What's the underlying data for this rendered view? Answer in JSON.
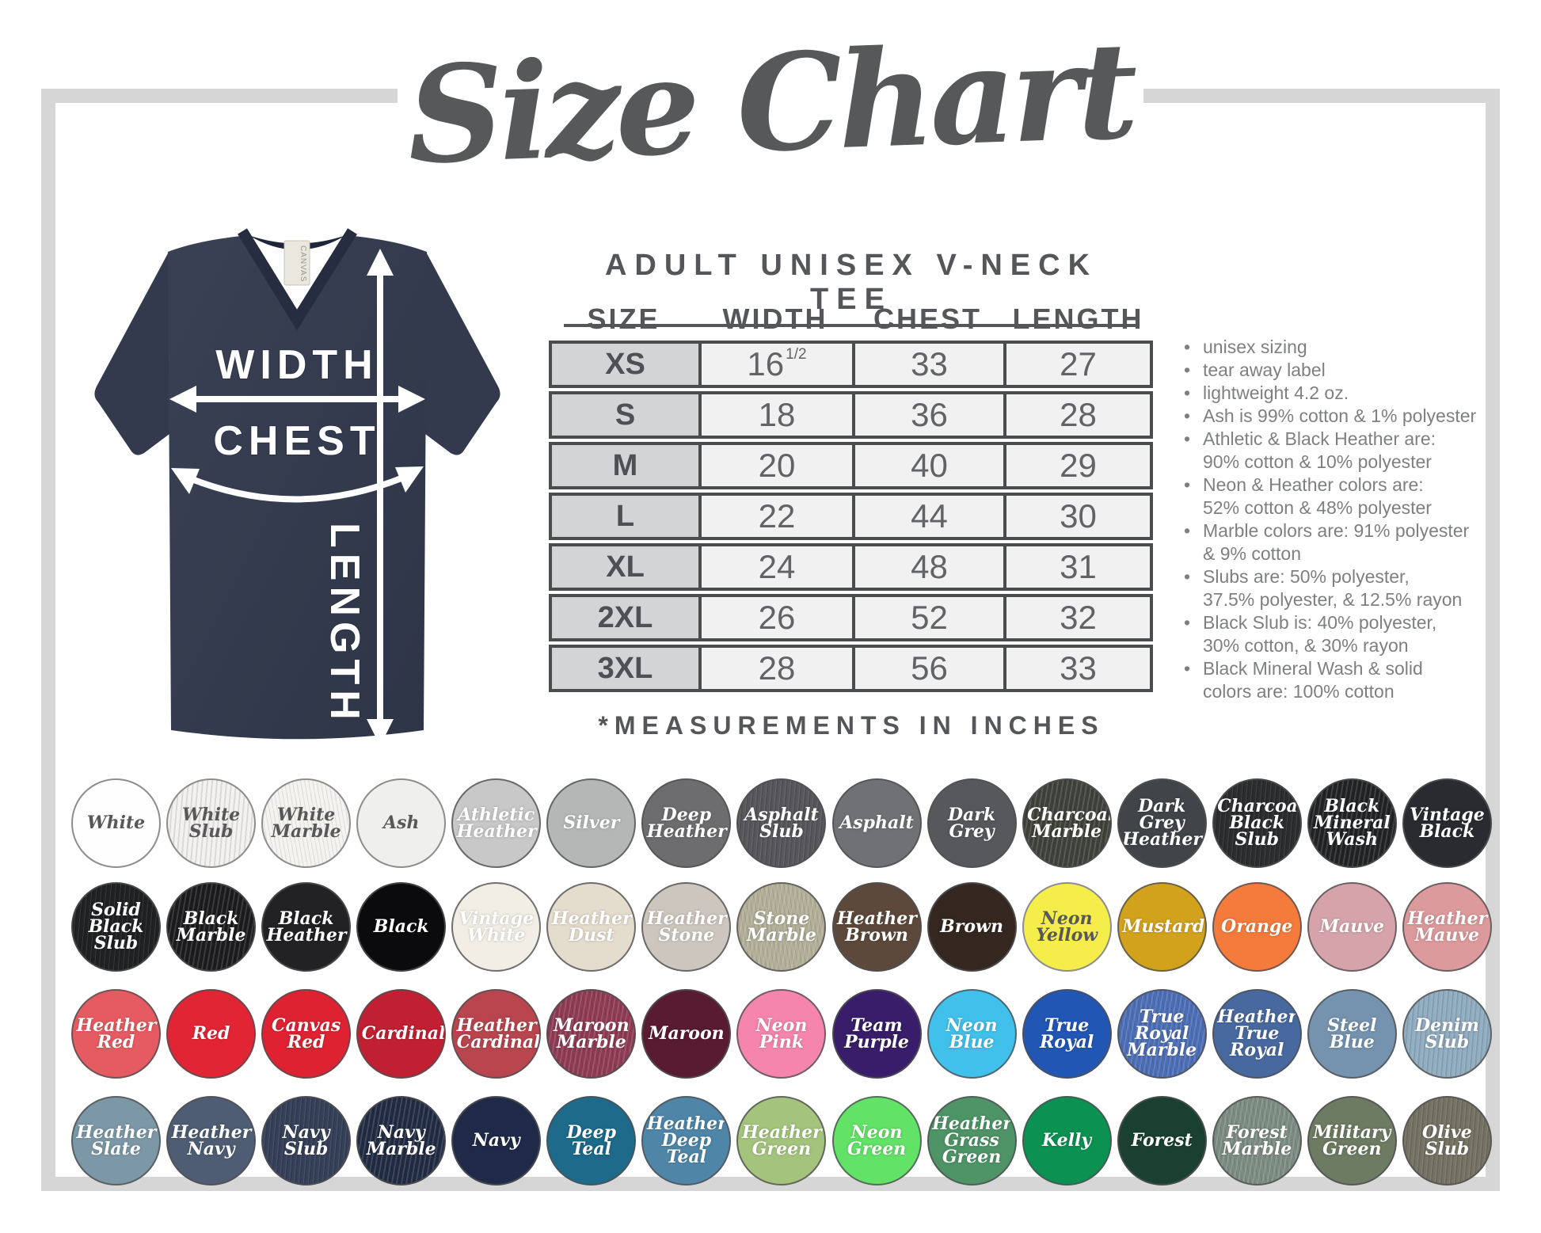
{
  "page": {
    "title": "Size Chart"
  },
  "diagram": {
    "width_label": "WIDTH",
    "chest_label": "CHEST",
    "length_label": "LENGTH",
    "tag_text": "CANVAS",
    "shirt_color": "#333a4d"
  },
  "size_chart": {
    "heading": "ADULT UNISEX V-NECK TEE",
    "columns": [
      "SIZE",
      "WIDTH",
      "CHEST",
      "LENGTH"
    ],
    "rows": [
      {
        "size": "XS",
        "width": "16",
        "width_sup": "1/2",
        "chest": "33",
        "length": "27"
      },
      {
        "size": "S",
        "width": "18",
        "chest": "36",
        "length": "28"
      },
      {
        "size": "M",
        "width": "20",
        "chest": "40",
        "length": "29"
      },
      {
        "size": "L",
        "width": "22",
        "chest": "44",
        "length": "30"
      },
      {
        "size": "XL",
        "width": "24",
        "chest": "48",
        "length": "31"
      },
      {
        "size": "2XL",
        "width": "26",
        "chest": "52",
        "length": "32"
      },
      {
        "size": "3XL",
        "width": "28",
        "chest": "56",
        "length": "33"
      }
    ],
    "footnote": "*MEASUREMENTS IN INCHES"
  },
  "notes": [
    [
      "unisex sizing"
    ],
    [
      "tear away label"
    ],
    [
      "lightweight 4.2 oz."
    ],
    [
      "Ash is 99% cotton & 1% polyester"
    ],
    [
      "Athletic & Black Heather are:",
      "90% cotton & 10% polyester"
    ],
    [
      "Neon & Heather colors are:",
      "52% cotton & 48% polyester"
    ],
    [
      "Marble colors are: 91% polyester",
      "& 9% cotton"
    ],
    [
      "Slubs are: 50% polyester,",
      "37.5% polyester, & 12.5% rayon"
    ],
    [
      "Black Slub is: 40% polyester,",
      "30% cotton, & 30% rayon"
    ],
    [
      "Black Mineral Wash & solid",
      "colors are: 100% cotton"
    ]
  ],
  "swatch_rows": [
    [
      {
        "name": "White",
        "hex": "#fefefe",
        "text_dark": true
      },
      {
        "name": "White Slub",
        "hex": "#f3f2f0",
        "text_dark": true,
        "texture": "slub"
      },
      {
        "name": "White Marble",
        "hex": "#f4f3f0",
        "text_dark": true,
        "texture": "marble"
      },
      {
        "name": "Ash",
        "hex": "#efefed",
        "text_dark": true
      },
      {
        "name": "Athletic Heather",
        "hex": "#c7c8c7"
      },
      {
        "name": "Silver",
        "hex": "#b5b7b6"
      },
      {
        "name": "Deep Heather",
        "hex": "#6d6d6f"
      },
      {
        "name": "Asphalt Slub",
        "hex": "#58585c",
        "texture": "slub"
      },
      {
        "name": "Asphalt",
        "hex": "#707174"
      },
      {
        "name": "Dark Grey",
        "hex": "#57585b"
      },
      {
        "name": "Charcoal Marble",
        "hex": "#3e4138",
        "texture": "marble"
      },
      {
        "name": "Dark Grey Heather",
        "hex": "#414449"
      },
      {
        "name": "Charcoal Black Slub",
        "hex": "#2c2d2f",
        "texture": "slub"
      },
      {
        "name": "Black Mineral Wash",
        "hex": "#202224",
        "texture": "marble"
      },
      {
        "name": "Vintage Black",
        "hex": "#292b31"
      }
    ],
    [
      {
        "name": "Solid Black Slub",
        "hex": "#202123",
        "texture": "slub"
      },
      {
        "name": "Black Marble",
        "hex": "#1b1b1d",
        "texture": "marble"
      },
      {
        "name": "Black Heather",
        "hex": "#222224"
      },
      {
        "name": "Black",
        "hex": "#0b0b0d"
      },
      {
        "name": "Vintage White",
        "hex": "#f2eee5"
      },
      {
        "name": "Heather Dust",
        "hex": "#e4dccd"
      },
      {
        "name": "Heather Stone",
        "hex": "#cdc6be"
      },
      {
        "name": "Stone Marble",
        "hex": "#b2ae97",
        "texture": "marble"
      },
      {
        "name": "Heather Brown",
        "hex": "#5d493b"
      },
      {
        "name": "Brown",
        "hex": "#34271f"
      },
      {
        "name": "Neon Yellow",
        "hex": "#f5ee4a",
        "text_dark": true
      },
      {
        "name": "Mustard",
        "hex": "#d2a21c"
      },
      {
        "name": "Orange",
        "hex": "#f47b3c"
      },
      {
        "name": "Mauve",
        "hex": "#d5a3a9"
      },
      {
        "name": "Heather Mauve",
        "hex": "#dc9a9c"
      }
    ],
    [
      {
        "name": "Heather Red",
        "hex": "#e65b61"
      },
      {
        "name": "Red",
        "hex": "#e22535"
      },
      {
        "name": "Canvas Red",
        "hex": "#df2231"
      },
      {
        "name": "Cardinal",
        "hex": "#c02032"
      },
      {
        "name": "Heather Cardinal",
        "hex": "#b9454e"
      },
      {
        "name": "Maroon Marble",
        "hex": "#8d3a52",
        "texture": "marble"
      },
      {
        "name": "Maroon",
        "hex": "#581b32"
      },
      {
        "name": "Neon Pink",
        "hex": "#f685ae"
      },
      {
        "name": "Team Purple",
        "hex": "#381d6a"
      },
      {
        "name": "Neon Blue",
        "hex": "#40c1ec"
      },
      {
        "name": "True Royal",
        "hex": "#2256b5"
      },
      {
        "name": "True Royal Marble",
        "hex": "#4b6db5",
        "texture": "marble"
      },
      {
        "name": "Heather True Royal",
        "hex": "#48699f"
      },
      {
        "name": "Steel Blue",
        "hex": "#7593ae"
      },
      {
        "name": "Denim Slub",
        "hex": "#92aec2",
        "texture": "slub"
      }
    ],
    [
      {
        "name": "Heather Slate",
        "hex": "#7c98a7"
      },
      {
        "name": "Heather Navy",
        "hex": "#4e5d73"
      },
      {
        "name": "Navy Slub",
        "hex": "#364059",
        "texture": "slub"
      },
      {
        "name": "Navy Marble",
        "hex": "#202a41",
        "texture": "marble"
      },
      {
        "name": "Navy",
        "hex": "#1f2a48"
      },
      {
        "name": "Deep Teal",
        "hex": "#1d6a8a"
      },
      {
        "name": "Heather Deep Teal",
        "hex": "#4f86a8"
      },
      {
        "name": "Heather Green",
        "hex": "#a4c47e"
      },
      {
        "name": "Neon Green",
        "hex": "#63e268"
      },
      {
        "name": "Heather Grass Green",
        "hex": "#4e9467"
      },
      {
        "name": "Kelly",
        "hex": "#0b9151"
      },
      {
        "name": "Forest",
        "hex": "#194031"
      },
      {
        "name": "Forest Marble",
        "hex": "#7b8b80",
        "texture": "marble"
      },
      {
        "name": "Military Green",
        "hex": "#6d7b62"
      },
      {
        "name": "Olive Slub",
        "hex": "#777364",
        "texture": "slub"
      }
    ]
  ]
}
